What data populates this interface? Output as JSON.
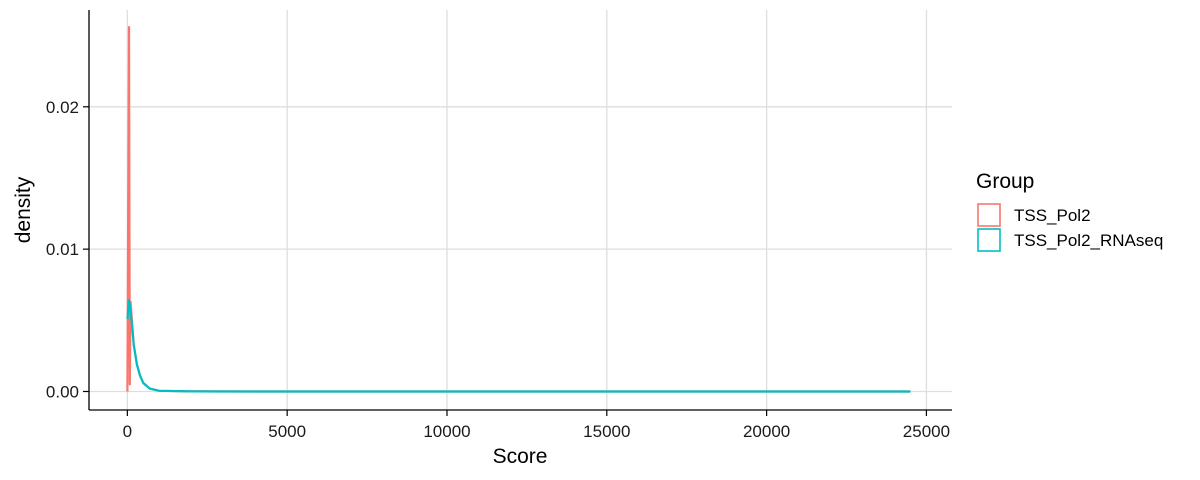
{
  "chart_data": {
    "type": "line",
    "xlabel": "Score",
    "ylabel": "density",
    "xlim": [
      -1200,
      25800
    ],
    "ylim": [
      -0.0013,
      0.0268
    ],
    "x_ticks": [
      0,
      5000,
      10000,
      15000,
      20000,
      25000
    ],
    "x_tick_labels": [
      "0",
      "5000",
      "10000",
      "15000",
      "20000",
      "25000"
    ],
    "y_ticks": [
      0.0,
      0.01,
      0.02
    ],
    "y_tick_labels": [
      "0.00",
      "0.01",
      "0.02"
    ],
    "grid": true,
    "legend": {
      "title": "Group",
      "placement": "right"
    },
    "series": [
      {
        "name": "TSS_Pol2",
        "color": "#F8766D",
        "x": [
          0,
          50,
          75,
          100,
          150,
          200,
          300,
          400,
          500,
          700,
          1000,
          2000,
          5000,
          10000,
          15000,
          20000,
          24500
        ],
        "y": [
          0.0,
          0.0256,
          0.0005,
          0.0063,
          0.0047,
          0.0033,
          0.0019,
          0.0011,
          0.0006,
          0.0002,
          5e-05,
          1e-05,
          0.0,
          0.0,
          0.0,
          0.0,
          0.0
        ]
      },
      {
        "name": "TSS_Pol2_RNAseq",
        "color": "#00BFC4",
        "x": [
          0,
          50,
          75,
          100,
          150,
          200,
          300,
          400,
          500,
          700,
          1000,
          2000,
          5000,
          10000,
          15000,
          20000,
          24500
        ],
        "y": [
          0.0051,
          0.0064,
          0.006,
          0.0056,
          0.0046,
          0.0033,
          0.0019,
          0.0011,
          0.0006,
          0.0002,
          5e-05,
          1e-05,
          0.0,
          0.0,
          0.0,
          0.0,
          0.0
        ]
      }
    ]
  }
}
